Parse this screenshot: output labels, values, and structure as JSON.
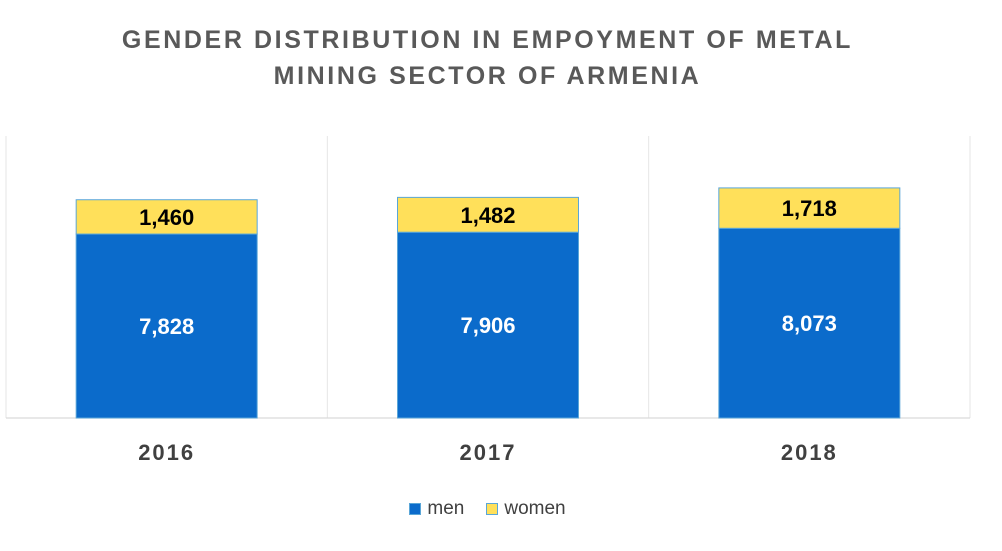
{
  "chart_data": {
    "type": "bar",
    "stacked": true,
    "title": "GENDER DISTRIBUTION IN EMPOYMENT OF METAL MINING SECTOR OF ARMENIA",
    "title_lines": [
      "GENDER DISTRIBUTION IN EMPOYMENT OF METAL",
      "MINING SECTOR OF ARMENIA"
    ],
    "categories": [
      "2016",
      "2017",
      "2018"
    ],
    "series": [
      {
        "name": "men",
        "values": [
          7828,
          7906,
          8073
        ],
        "labels": [
          "7,828",
          "7,906",
          "8,073"
        ],
        "color": "#0b6bcb",
        "label_color": "#ffffff"
      },
      {
        "name": "women",
        "values": [
          1460,
          1482,
          1718
        ],
        "labels": [
          "1,460",
          "1,482",
          "1,718"
        ],
        "color": "#ffe05a",
        "label_color": "#000000"
      }
    ],
    "ylim": [
      0,
      11000
    ],
    "grid": false,
    "legend": "bottom",
    "bar_border_color": "#5aa6d8",
    "divider_color": "#e6e6e6",
    "axis_color": "#d9d9d9",
    "xlabel": "",
    "ylabel": ""
  }
}
